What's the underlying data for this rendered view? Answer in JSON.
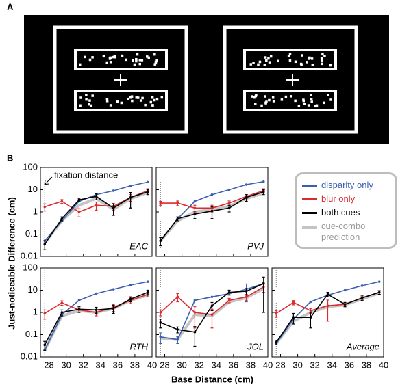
{
  "panel_labels": [
    "A",
    "B"
  ],
  "y_label": "Just-noticeable Difference (cm)",
  "x_label": "Base Distance (cm)",
  "chart_data": [
    {
      "type": "line",
      "title": "EAC",
      "annotation": "fixation distance",
      "log_y": true,
      "vline": 27.5,
      "x": [
        27.5,
        29.5,
        31.5,
        33.5,
        35.5,
        37.5,
        39.5
      ],
      "xlim": [
        27,
        40
      ],
      "xticks": [
        28,
        30,
        32,
        34,
        36,
        38,
        40
      ],
      "ylim": [
        0.01,
        100
      ],
      "yticks": [
        0.01,
        0.1,
        1,
        10,
        100
      ],
      "series": [
        {
          "name": "cue-combo prediction",
          "color": "#c4c4c4",
          "values": [
            0.04,
            0.4,
            2,
            4,
            1.3,
            4,
            7.5
          ]
        },
        {
          "name": "disparity only",
          "color": "#3b5fb0",
          "values": [
            0.05,
            0.4,
            3,
            6,
            9,
            15,
            22
          ]
        },
        {
          "name": "blur only",
          "color": "#dc2a2e",
          "values": [
            1.7,
            3,
            1.0,
            2,
            1.8,
            4.5,
            9
          ],
          "errors": [
            0.6,
            0.6,
            0.4,
            0.8,
            0.6,
            1.5,
            2
          ]
        },
        {
          "name": "both cues",
          "color": "#000000",
          "values": [
            0.035,
            0.5,
            3.5,
            5,
            1.5,
            4.5,
            8
          ],
          "errors": [
            0.015,
            0.1,
            0.6,
            1.5,
            0.8,
            3,
            2
          ]
        }
      ]
    },
    {
      "type": "line",
      "title": "PVJ",
      "log_y": true,
      "vline": 27.5,
      "x": [
        27.5,
        29.5,
        31.5,
        33.5,
        35.5,
        37.5,
        39.5
      ],
      "xlim": [
        27,
        40
      ],
      "xticks": [
        28,
        30,
        32,
        34,
        36,
        38,
        40
      ],
      "ylim": [
        0.01,
        100
      ],
      "yticks": [
        0.01,
        0.1,
        1,
        10,
        100
      ],
      "series": [
        {
          "name": "cue-combo prediction",
          "color": "#c4c4c4",
          "values": [
            0.05,
            0.4,
            1,
            1.3,
            1.8,
            4,
            7
          ]
        },
        {
          "name": "disparity only",
          "color": "#3b5fb0",
          "values": [
            0.05,
            0.5,
            3,
            6,
            10,
            17,
            23
          ]
        },
        {
          "name": "blur only",
          "color": "#dc2a2e",
          "values": [
            2.5,
            2.5,
            1.5,
            1.5,
            2.5,
            5,
            9
          ],
          "errors": [
            0.5,
            0.6,
            0.5,
            0.5,
            0.6,
            1,
            2
          ]
        },
        {
          "name": "both cues",
          "color": "#000000",
          "values": [
            0.05,
            0.5,
            0.8,
            1.1,
            1.5,
            4.5,
            8
          ],
          "errors": [
            0.02,
            0.1,
            0.3,
            0.6,
            0.5,
            1.5,
            2
          ]
        }
      ]
    },
    {
      "type": "line",
      "title": "RTH",
      "log_y": true,
      "vline": 27.5,
      "x": [
        27.5,
        29.5,
        31.5,
        33.5,
        35.5,
        37.5,
        39.5
      ],
      "xlim": [
        27,
        40
      ],
      "xticks": [
        28,
        30,
        32,
        34,
        36,
        38,
        40
      ],
      "ylim": [
        0.01,
        100
      ],
      "yticks": [
        0.01,
        0.1,
        1,
        10,
        100
      ],
      "series": [
        {
          "name": "cue-combo prediction",
          "color": "#c4c4c4",
          "values": [
            0.02,
            0.7,
            1.2,
            1,
            1.5,
            3.5,
            6
          ]
        },
        {
          "name": "disparity only",
          "color": "#3b5fb0",
          "values": [
            0.02,
            0.8,
            3.5,
            7,
            11,
            17,
            24
          ]
        },
        {
          "name": "blur only",
          "color": "#dc2a2e",
          "values": [
            0.9,
            2.7,
            1.3,
            1,
            1.7,
            3.5,
            6.5
          ],
          "errors": [
            0.4,
            0.6,
            0.3,
            0.3,
            0.6,
            1,
            1.5
          ]
        },
        {
          "name": "both cues",
          "color": "#000000",
          "values": [
            0.035,
            1,
            1.4,
            1.3,
            1.5,
            4,
            8
          ],
          "errors": [
            0.015,
            0.3,
            0.4,
            0.4,
            0.6,
            1,
            2
          ]
        }
      ]
    },
    {
      "type": "line",
      "title": "JOL",
      "log_y": true,
      "vline": 27.5,
      "x": [
        27.5,
        29.5,
        31.5,
        33.5,
        35.5,
        37.5,
        39.5
      ],
      "xlim": [
        27,
        40
      ],
      "xticks": [
        28,
        30,
        32,
        34,
        36,
        38,
        40
      ],
      "ylim": [
        0.01,
        100
      ],
      "yticks": [
        0.01,
        0.1,
        1,
        10,
        100
      ],
      "series": [
        {
          "name": "cue-combo prediction",
          "color": "#c4c4c4",
          "values": [
            0.07,
            0.06,
            0.8,
            0.7,
            3,
            4.5,
            12
          ]
        },
        {
          "name": "disparity only",
          "color": "#3b5fb0",
          "values": [
            0.08,
            0.06,
            3.5,
            5,
            7,
            11,
            20
          ],
          "errors": [
            0.04,
            0.02,
            null,
            null,
            null,
            8,
            null
          ]
        },
        {
          "name": "blur only",
          "color": "#dc2a2e",
          "values": [
            1,
            5,
            1,
            0.8,
            3.5,
            5,
            14
          ],
          "errors": [
            0.3,
            2,
            0.8,
            0.6,
            0.8,
            1.5,
            6
          ]
        },
        {
          "name": "both cues",
          "color": "#000000",
          "values": [
            0.35,
            0.17,
            0.13,
            2,
            8,
            9,
            20
          ],
          "errors": [
            0.15,
            0.05,
            0.1,
            0.8,
            2,
            3,
            19
          ]
        }
      ]
    },
    {
      "type": "line",
      "title": "Average",
      "log_y": true,
      "vline": 27.5,
      "x": [
        27.5,
        29.5,
        31.5,
        33.5,
        35.5,
        37.5,
        39.5
      ],
      "xlim": [
        27,
        40
      ],
      "xticks": [
        28,
        30,
        32,
        34,
        36,
        38,
        40
      ],
      "ylim": [
        0.01,
        100
      ],
      "yticks": [
        0.01,
        0.1,
        1,
        10,
        100
      ],
      "series": [
        {
          "name": "cue-combo prediction",
          "color": "#c4c4c4",
          "values": [
            0.04,
            0.4,
            1,
            1.8,
            2.2,
            4,
            7.5
          ]
        },
        {
          "name": "disparity only",
          "color": "#3b5fb0",
          "values": [
            0.04,
            0.5,
            3,
            6,
            10,
            16,
            24
          ]
        },
        {
          "name": "blur only",
          "color": "#dc2a2e",
          "values": [
            0.9,
            2.8,
            1.2,
            2,
            2.3,
            4.5,
            8
          ],
          "errors": [
            0.3,
            0.6,
            0.3,
            1.6,
            0.5,
            1,
            1.5
          ]
        },
        {
          "name": "both cues",
          "color": "#000000",
          "values": [
            0.045,
            0.6,
            0.6,
            6.5,
            2.3,
            4.5,
            8
          ],
          "errors": [
            0.01,
            0.3,
            0.4,
            1.5,
            0.5,
            1,
            1.5
          ]
        }
      ]
    }
  ]
}
